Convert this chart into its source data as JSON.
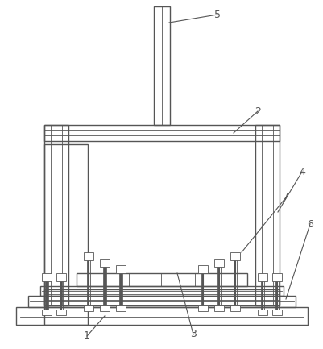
{
  "bg_color": "#ffffff",
  "line_color": "#555555",
  "line_width": 1.0,
  "thin_lw": 0.6,
  "label_color": "#555555",
  "label_fontsize": 9
}
